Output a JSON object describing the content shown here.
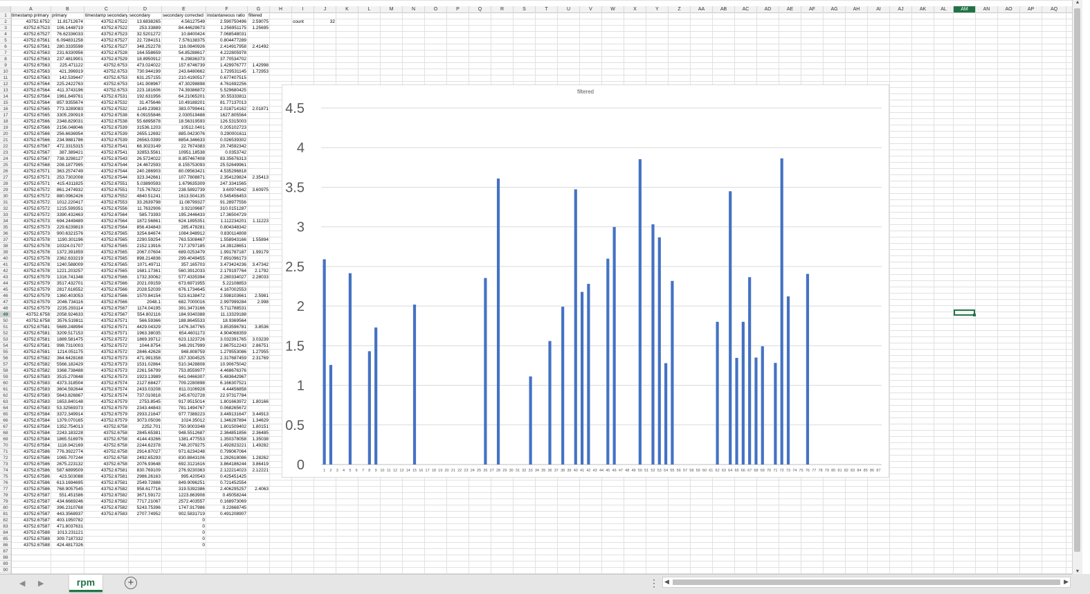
{
  "sheet": {
    "columns": [
      "A",
      "B",
      "C",
      "D",
      "E",
      "F",
      "G",
      "H",
      "I",
      "J",
      "K",
      "L",
      "M",
      "N",
      "O",
      "P",
      "Q",
      "R",
      "S",
      "T",
      "U",
      "V",
      "W",
      "X",
      "Y",
      "Z",
      "AA",
      "AB",
      "AC",
      "AD",
      "AE",
      "AF",
      "AG",
      "AH",
      "AI",
      "AJ",
      "AK",
      "AL",
      "AM",
      "AN",
      "AO",
      "AP",
      "AQ"
    ],
    "selected_column": "AM",
    "selected_row": "49",
    "headers": [
      "timestamp primary",
      "primary",
      "timestamp secondary",
      "secondary",
      "secondary corrected",
      "instantaneous ratio",
      "filtered"
    ],
    "count_label": "count",
    "count_value": "32",
    "rows": [
      [
        "43752.6752",
        "11.81712674",
        "43752.67522",
        "13.6838265",
        "4.56127549",
        "2.590750496",
        "2.59075"
      ],
      [
        "43752.67523",
        "106.1448719",
        "43752.67522",
        "253.33889",
        "84.44629673",
        "1.256951175",
        "1.25695"
      ],
      [
        "43752.67527",
        "76.62336033",
        "43752.67523",
        "32.5201272",
        "10.8400424",
        "7.068548031",
        ""
      ],
      [
        "43752.67561",
        "6.094831258",
        "43752.67527",
        "22.7284151",
        "7.576138375",
        "0.804477289",
        ""
      ],
      [
        "43752.67561",
        "280.3335598",
        "43752.67527",
        "348.252278",
        "116.0840926",
        "2.414917958",
        "2.41492"
      ],
      [
        "43752.67563",
        "231.6330956",
        "43752.67528",
        "164.558659",
        "54.85288617",
        "4.222805978",
        ""
      ],
      [
        "43752.67563",
        "237.4819901",
        "43752.67529",
        "18.8950912",
        "6.29836373",
        "37.70534702",
        ""
      ],
      [
        "43752.67563",
        "225.471122",
        "43752.6753",
        "473.024022",
        "157.6746739",
        "1.429976777",
        "1.42998"
      ],
      [
        "43752.67563",
        "421.396919",
        "43752.6753",
        "730.944199",
        "243.6480662",
        "1.729531145",
        "1.72953"
      ],
      [
        "43752.67563",
        "142.539447",
        "43752.6753",
        "631.257155",
        "210.4190517",
        "0.677407515",
        ""
      ],
      [
        "43752.67564",
        "225.2422763",
        "43752.6753",
        "141.908967",
        "47.30298898",
        "4.761692256",
        ""
      ],
      [
        "43752.67564",
        "411.3743196",
        "43752.6753",
        "223.181606",
        "74.39386872",
        "5.529680425",
        ""
      ],
      [
        "43752.67564",
        "1961.849761",
        "43752.67531",
        "192.631956",
        "64.21065201",
        "30.55333811",
        ""
      ],
      [
        "43752.67564",
        "857.9355674",
        "43752.67532",
        "31.475646",
        "10.49188201",
        "81.77137013",
        ""
      ],
      [
        "43752.67565",
        "773.3289083",
        "43752.67532",
        "1149.23983",
        "383.0799441",
        "2.018714162",
        "2.01871"
      ],
      [
        "43752.67565",
        "3305.290919",
        "43752.67538",
        "6.09155846",
        "2.030519488",
        "1627.805564",
        ""
      ],
      [
        "43752.67566",
        "2348.829031",
        "43752.67538",
        "55.6895878",
        "18.56319593",
        "126.5315003",
        ""
      ],
      [
        "43752.67566",
        "2156.048046",
        "43752.67539",
        "31536.1203",
        "10512.0401",
        "0.205102723",
        ""
      ],
      [
        "43752.67566",
        "256.6636954",
        "43752.67539",
        "2655.12692",
        "885.0423076",
        "0.290001611",
        ""
      ],
      [
        "43752.67566",
        "234.9881786",
        "43752.67539",
        "26563.0399",
        "8854.346633",
        "0.026539302",
        ""
      ],
      [
        "43752.67567",
        "472.3315315",
        "43752.67541",
        "68.3023149",
        "22.7674383",
        "20.74592342",
        ""
      ],
      [
        "43752.67567",
        "387.389421",
        "43752.67541",
        "32853.5561",
        "10951.18538",
        "0.0353742",
        ""
      ],
      [
        "43752.67567",
        "738.3298127",
        "43752.67543",
        "26.5724022",
        "8.857467408",
        "83.35676313",
        ""
      ],
      [
        "43752.67568",
        "208.1877995",
        "43752.67544",
        "24.4672593",
        "8.155753093",
        "25.52649961",
        ""
      ],
      [
        "43752.67571",
        "363.2574749",
        "43752.67544",
        "240.286903",
        "80.09563421",
        "4.535296818",
        ""
      ],
      [
        "43752.67571",
        "253.7302008",
        "43752.67544",
        "323.342661",
        "107.7808871",
        "2.354129824",
        "2.35413"
      ],
      [
        "43752.67571",
        "415.4311825",
        "43752.67551",
        "5.03890593",
        "1.679635309",
        "247.3341565",
        ""
      ],
      [
        "43752.67572",
        "861.2474932",
        "43752.67551",
        "715.767822",
        "238.5892739",
        "3.60974942",
        "3.60975"
      ],
      [
        "43752.67572",
        "880.0962426",
        "43752.67552",
        "4840.51241",
        "1613.504135",
        "0.545456453",
        ""
      ],
      [
        "43752.67572",
        "1012.220417",
        "43752.67553",
        "33.2639798",
        "11.08799327",
        "91.28977556",
        ""
      ],
      [
        "43752.67572",
        "1215.599351",
        "43752.67556",
        "11.7632906",
        "3.92109687",
        "310.0151287",
        ""
      ],
      [
        "43752.67572",
        "3390.432463",
        "43752.67564",
        "585.73393",
        "195.2446433",
        "17.36504729",
        ""
      ],
      [
        "43752.67573",
        "694.2449489",
        "43752.67564",
        "1872.56861",
        "624.1895351",
        "1.112234201",
        "1.11223"
      ],
      [
        "43752.67573",
        "229.6239819",
        "43752.67564",
        "856.434843",
        "285.478281",
        "0.804348342",
        ""
      ],
      [
        "43752.67573",
        "900.6321576",
        "43752.67565",
        "3254.84674",
        "1084.948912",
        "0.830114808",
        ""
      ],
      [
        "43752.67578",
        "1190.301196",
        "43752.67565",
        "2290.59254",
        "763.5308467",
        "1.558943166",
        "1.55894"
      ],
      [
        "43752.67578",
        "10324.01707",
        "43752.67565",
        "2152.13916",
        "717.3797185",
        "14.39128651",
        ""
      ],
      [
        "43752.67578",
        "1372.391859",
        "43752.67565",
        "2067.07604",
        "689.0253479",
        "1.991787187",
        "1.99179"
      ],
      [
        "43752.67578",
        "2362.633219",
        "43752.67565",
        "898.214836",
        "299.4049455",
        "7.891096173",
        ""
      ],
      [
        "43752.67578",
        "1240.588009",
        "43752.67565",
        "1071.49711",
        "357.165703",
        "3.473424236",
        "3.47342"
      ],
      [
        "43752.67578",
        "1221.203257",
        "43752.67565",
        "1681.17361",
        "560.3912033",
        "2.179197764",
        "2.1792"
      ],
      [
        "43752.67579",
        "1316.741348",
        "43752.67566",
        "1732.30062",
        "577.4335394",
        "2.280334027",
        "2.28033"
      ],
      [
        "43752.67579",
        "3517.432701",
        "43752.67566",
        "2021.09159",
        "673.6971955",
        "5.22108853",
        ""
      ],
      [
        "43752.67579",
        "2817.616552",
        "43752.67566",
        "2028.52039",
        "676.1734645",
        "4.167002553",
        ""
      ],
      [
        "43752.67579",
        "1360.403053",
        "43752.67566",
        "1570.84154",
        "523.6138472",
        "2.598103661",
        "2.5981"
      ],
      [
        "43752.67579",
        "2046.734116",
        "43752.67566",
        "2048.1",
        "682.7000016",
        "2.997999284",
        "2.998"
      ],
      [
        "43752.67579",
        "2235.293114",
        "43752.67567",
        "1174.04195",
        "391.3473166",
        "5.711788531",
        ""
      ],
      [
        "43752.6758",
        "2058.924633",
        "43752.67567",
        "554.802116",
        "184.9340388",
        "11.13329188",
        ""
      ],
      [
        "43752.6758",
        "3576.519811",
        "43752.67571",
        "566.59366",
        "188.8645533",
        "18.9369564",
        ""
      ],
      [
        "43752.67581",
        "5689.248994",
        "43752.67571",
        "4429.04329",
        "1476.347765",
        "3.853596781",
        "3.8536"
      ],
      [
        "43752.67581",
        "3209.517153",
        "43752.67571",
        "1963.38035",
        "654.4601173",
        "4.904068359",
        ""
      ],
      [
        "43752.67581",
        "1889.581475",
        "43752.67572",
        "1869.39712",
        "623.1323726",
        "3.032391765",
        "3.03239"
      ],
      [
        "43752.67581",
        "998.7310003",
        "43752.67572",
        "1044.8754",
        "348.2917999",
        "2.867512243",
        "2.86751"
      ],
      [
        "43752.67581",
        "1214.051175",
        "43752.67572",
        "2846.42628",
        "948.808759",
        "1.279553086",
        "1.27955"
      ],
      [
        "43752.67582",
        "364.6428168",
        "43752.67573",
        "471.991358",
        "157.3304525",
        "2.317687459",
        "2.31769"
      ],
      [
        "43752.67582",
        "5566.182429",
        "43752.67573",
        "1531.02864",
        "510.3428808",
        "10.90675042",
        ""
      ],
      [
        "43752.67582",
        "3368.738488",
        "43752.67573",
        "2261.56799",
        "753.8559977",
        "4.468676376",
        ""
      ],
      [
        "43752.67583",
        "3515.270848",
        "43752.67573",
        "1923.13989",
        "641.0466307",
        "5.483642967",
        ""
      ],
      [
        "43752.67583",
        "4373.318504",
        "43752.67574",
        "2127.68427",
        "709.2280898",
        "6.166307521",
        ""
      ],
      [
        "43752.67583",
        "3604.592644",
        "43752.67574",
        "2433.03208",
        "811.0106928",
        "4.44456858",
        ""
      ],
      [
        "43752.67583",
        "5643.826867",
        "43752.67574",
        "737.010818",
        "245.6702728",
        "22.97317784",
        ""
      ],
      [
        "43752.67583",
        "1653.840148",
        "43752.67579",
        "2753.8545",
        "917.9515014",
        "1.801663972",
        "1.80166"
      ],
      [
        "43752.67583",
        "53.32569373",
        "43752.67579",
        "2343.44843",
        "781.1494767",
        "0.068265672",
        ""
      ],
      [
        "43752.67584",
        "3372.349914",
        "43752.67579",
        "2933.21647",
        "977.7388223",
        "3.449131647",
        "3.44913"
      ],
      [
        "43752.67584",
        "1379.070165",
        "43752.67579",
        "3073.05036",
        "1024.35012",
        "1.346287894",
        "1.34629"
      ],
      [
        "43752.67584",
        "1352.754013",
        "43752.6758",
        "2252.701",
        "750.9003348",
        "1.801509402",
        "1.80151"
      ],
      [
        "43752.67584",
        "2243.183228",
        "43752.6758",
        "2845.65381",
        "948.5512687",
        "2.364851856",
        "2.36485"
      ],
      [
        "43752.67584",
        "1865.516976",
        "43752.6758",
        "4144.43266",
        "1381.477553",
        "1.350378058",
        "1.35038"
      ],
      [
        "43752.67584",
        "1116.942169",
        "43752.6758",
        "2244.62378",
        "748.2079275",
        "1.492823221",
        "1.49282"
      ],
      [
        "43752.67586",
        "776.3922774",
        "43752.6758",
        "2914.87027",
        "971.6234248",
        "0.799067064",
        ""
      ],
      [
        "43752.67586",
        "1065.707244",
        "43752.6758",
        "2492.65293",
        "830.8843106",
        "1.282618086",
        "1.28262"
      ],
      [
        "43752.67586",
        "2675.223132",
        "43752.6758",
        "2076.93648",
        "692.3121616",
        "3.864186244",
        "3.86419"
      ],
      [
        "43752.67586",
        "587.6899509",
        "43752.67581",
        "830.769109",
        "276.9230363",
        "2.122214023",
        "2.12221"
      ],
      [
        "43752.67586",
        "423.503088",
        "43752.67581",
        "2986.26163",
        "995.420543",
        "0.425451425",
        ""
      ],
      [
        "43752.67586",
        "613.1694695",
        "43752.67581",
        "2549.72888",
        "849.9096251",
        "0.721452554",
        ""
      ],
      [
        "43752.67586",
        "768.9057545",
        "43752.67582",
        "958.617716",
        "319.5392386",
        "2.406295257",
        "2.4063"
      ],
      [
        "43752.67587",
        "551.451586",
        "43752.67582",
        "3671.59172",
        "1223.863908",
        "0.45058244",
        ""
      ],
      [
        "43752.67587",
        "434.6669246",
        "43752.67582",
        "7717.21067",
        "2572.403557",
        "0.168973069",
        ""
      ],
      [
        "43752.67587",
        "396.2310768",
        "43752.67582",
        "5243.75396",
        "1747.917986",
        "0.22668745",
        ""
      ],
      [
        "43752.67587",
        "443.3568937",
        "43752.67583",
        "2707.74952",
        "902.5831719",
        "0.491208907",
        ""
      ],
      [
        "43752.67587",
        "403.1950782",
        "",
        "",
        "0",
        "",
        ""
      ],
      [
        "43752.67587",
        "471.8037631",
        "",
        "",
        "0",
        "",
        ""
      ],
      [
        "43752.67588",
        "1013.231121",
        "",
        "",
        "0",
        "",
        ""
      ],
      [
        "43752.67588",
        "309.7187332",
        "",
        "",
        "0",
        "",
        ""
      ],
      [
        "43752.67588",
        "424.4817326",
        "",
        "",
        "0",
        "",
        ""
      ]
    ]
  },
  "chart_data": {
    "type": "bar",
    "title": "filtered",
    "ylim": [
      0,
      4.5
    ],
    "yticks": [
      "0",
      "0.5",
      "1",
      "1.5",
      "2",
      "2.5",
      "3",
      "3.5",
      "4",
      "4.5"
    ],
    "bar_color": "#4472c4",
    "grid": true,
    "legend": "none",
    "categories": [
      1,
      2,
      3,
      4,
      5,
      6,
      7,
      8,
      9,
      10,
      11,
      12,
      13,
      14,
      15,
      16,
      17,
      18,
      19,
      20,
      21,
      22,
      23,
      24,
      25,
      26,
      27,
      28,
      29,
      30,
      31,
      32,
      33,
      34,
      35,
      36,
      37,
      38,
      39,
      40,
      41,
      42,
      43,
      44,
      45,
      46,
      47,
      48,
      49,
      50,
      51,
      52,
      53,
      54,
      55,
      56,
      57,
      58,
      59,
      60,
      61,
      62,
      63,
      64,
      65,
      66,
      67,
      68,
      69,
      70,
      71,
      72,
      73,
      74,
      75,
      76,
      77,
      78,
      79,
      80,
      81,
      82,
      83,
      84,
      85,
      86,
      87
    ],
    "values": [
      2.59075,
      1.25695,
      null,
      null,
      2.41492,
      null,
      null,
      1.42998,
      1.72953,
      null,
      null,
      null,
      null,
      null,
      2.01871,
      null,
      null,
      null,
      null,
      null,
      null,
      null,
      null,
      null,
      null,
      2.35413,
      null,
      3.60975,
      null,
      null,
      null,
      null,
      1.11223,
      null,
      null,
      1.55894,
      null,
      1.99179,
      null,
      3.47342,
      2.1792,
      2.28033,
      null,
      null,
      2.5981,
      2.998,
      null,
      null,
      null,
      3.8536,
      null,
      3.03239,
      2.86751,
      1.27955,
      2.31769,
      null,
      null,
      null,
      null,
      null,
      null,
      1.80166,
      null,
      3.44913,
      1.34629,
      1.80151,
      2.36485,
      1.35038,
      1.49282,
      null,
      1.28262,
      3.86419,
      2.12221,
      null,
      null,
      2.4063,
      null,
      null,
      null,
      null,
      null,
      null,
      null,
      null,
      null,
      null,
      null
    ]
  },
  "tabs": {
    "sheet_name": "rpm",
    "add_label": "+",
    "prev_label": "◀",
    "next_label": "▶",
    "more_label": "⋮"
  }
}
